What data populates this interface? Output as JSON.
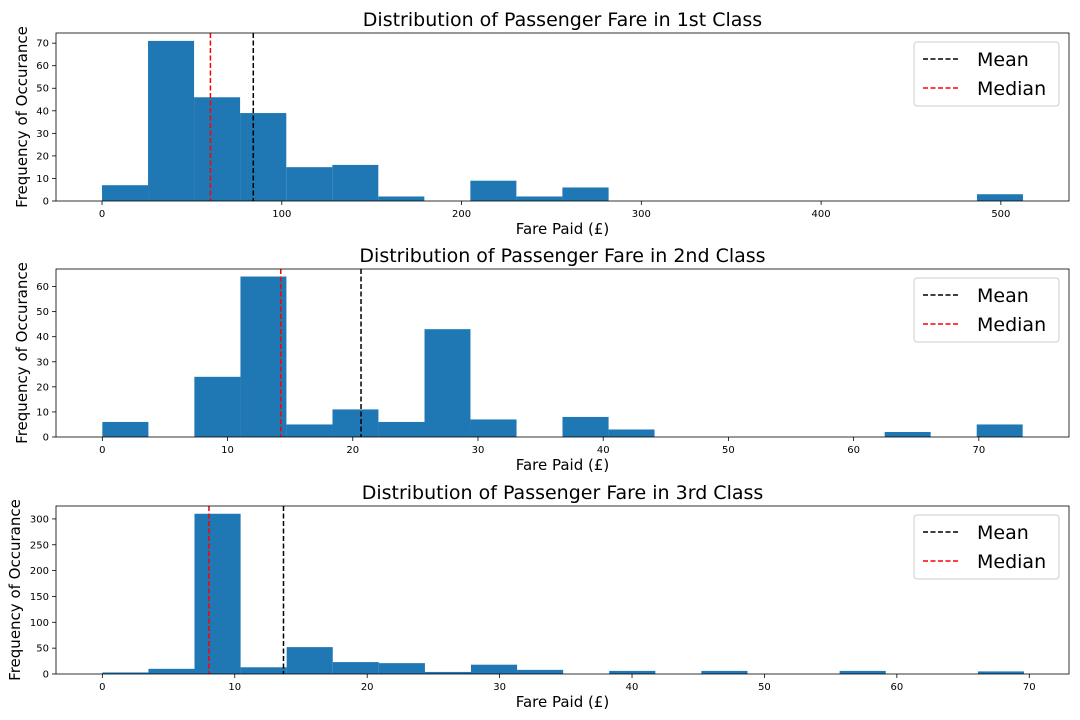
{
  "chart_data": [
    {
      "type": "histogram",
      "title": "Distribution of Passenger Fare in 1st Class",
      "xlabel": "Fare Paid (£)",
      "ylabel": "Frequency of Occurance",
      "xlim": [
        -25.6,
        537.9
      ],
      "ylim": [
        0,
        74.5
      ],
      "xticks": [
        0,
        100,
        200,
        300,
        400,
        500
      ],
      "yticks": [
        0,
        10,
        20,
        30,
        40,
        50,
        60,
        70
      ],
      "bins": [
        {
          "x0": 0,
          "x1": 25.6,
          "count": 7
        },
        {
          "x0": 25.6,
          "x1": 51.2,
          "count": 71
        },
        {
          "x0": 51.2,
          "x1": 76.8,
          "count": 46
        },
        {
          "x0": 76.8,
          "x1": 102.5,
          "count": 39
        },
        {
          "x0": 102.5,
          "x1": 128.1,
          "count": 15
        },
        {
          "x0": 128.1,
          "x1": 153.7,
          "count": 16
        },
        {
          "x0": 153.7,
          "x1": 179.3,
          "count": 2
        },
        {
          "x0": 179.3,
          "x1": 204.9,
          "count": 0
        },
        {
          "x0": 204.9,
          "x1": 230.5,
          "count": 9
        },
        {
          "x0": 230.5,
          "x1": 256.1,
          "count": 2
        },
        {
          "x0": 256.1,
          "x1": 281.8,
          "count": 6
        },
        {
          "x0": 281.8,
          "x1": 486.7,
          "count": 0
        },
        {
          "x0": 486.7,
          "x1": 512.3,
          "count": 3
        }
      ],
      "mean": 84.15,
      "median": 60.29,
      "legend": [
        "Mean",
        "Median"
      ],
      "legend_position": "upper right",
      "colors": {
        "bar": "#1f77b4",
        "mean": "#000000",
        "median": "#ff0000"
      }
    },
    {
      "type": "histogram",
      "title": "Distribution of Passenger Fare in 2nd Class",
      "xlabel": "Fare Paid (£)",
      "ylabel": "Frequency of Occurance",
      "xlim": [
        -3.7,
        77.2
      ],
      "ylim": [
        0,
        67
      ],
      "xticks": [
        0,
        10,
        20,
        30,
        40,
        50,
        60,
        70
      ],
      "yticks": [
        0,
        10,
        20,
        30,
        40,
        50,
        60
      ],
      "bins": [
        {
          "x0": 0,
          "x1": 3.68,
          "count": 6
        },
        {
          "x0": 3.68,
          "x1": 7.35,
          "count": 0
        },
        {
          "x0": 7.35,
          "x1": 11.03,
          "count": 24
        },
        {
          "x0": 11.03,
          "x1": 14.7,
          "count": 64
        },
        {
          "x0": 14.7,
          "x1": 18.38,
          "count": 5
        },
        {
          "x0": 18.38,
          "x1": 22.05,
          "count": 11
        },
        {
          "x0": 22.05,
          "x1": 25.73,
          "count": 6
        },
        {
          "x0": 25.73,
          "x1": 29.4,
          "count": 43
        },
        {
          "x0": 29.4,
          "x1": 33.08,
          "count": 7
        },
        {
          "x0": 33.08,
          "x1": 36.75,
          "count": 0
        },
        {
          "x0": 36.75,
          "x1": 40.43,
          "count": 8
        },
        {
          "x0": 40.43,
          "x1": 44.1,
          "count": 3
        },
        {
          "x0": 44.1,
          "x1": 62.48,
          "count": 0
        },
        {
          "x0": 62.48,
          "x1": 66.15,
          "count": 2
        },
        {
          "x0": 66.15,
          "x1": 69.83,
          "count": 0
        },
        {
          "x0": 69.83,
          "x1": 73.5,
          "count": 5
        }
      ],
      "mean": 20.66,
      "median": 14.25,
      "legend": [
        "Mean",
        "Median"
      ],
      "legend_position": "upper right",
      "colors": {
        "bar": "#1f77b4",
        "mean": "#000000",
        "median": "#ff0000"
      }
    },
    {
      "type": "histogram",
      "title": "Distribution of Passenger Fare in 3rd Class",
      "xlabel": "Fare Paid (£)",
      "ylabel": "Frequency of Occurance",
      "xlim": [
        -3.5,
        73.0
      ],
      "ylim": [
        0,
        325
      ],
      "xticks": [
        0,
        10,
        20,
        30,
        40,
        50,
        60,
        70
      ],
      "yticks": [
        0,
        50,
        100,
        150,
        200,
        250,
        300
      ],
      "bins": [
        {
          "x0": 0,
          "x1": 3.48,
          "count": 3
        },
        {
          "x0": 3.48,
          "x1": 6.96,
          "count": 10
        },
        {
          "x0": 6.96,
          "x1": 10.44,
          "count": 310
        },
        {
          "x0": 10.44,
          "x1": 13.92,
          "count": 13
        },
        {
          "x0": 13.92,
          "x1": 17.4,
          "count": 52
        },
        {
          "x0": 17.4,
          "x1": 20.88,
          "count": 23
        },
        {
          "x0": 20.88,
          "x1": 24.36,
          "count": 21
        },
        {
          "x0": 24.36,
          "x1": 27.84,
          "count": 4
        },
        {
          "x0": 27.84,
          "x1": 31.32,
          "count": 18
        },
        {
          "x0": 31.32,
          "x1": 34.8,
          "count": 8
        },
        {
          "x0": 34.8,
          "x1": 38.28,
          "count": 0
        },
        {
          "x0": 38.28,
          "x1": 41.76,
          "count": 6
        },
        {
          "x0": 41.76,
          "x1": 45.24,
          "count": 0
        },
        {
          "x0": 45.24,
          "x1": 48.72,
          "count": 6
        },
        {
          "x0": 48.72,
          "x1": 55.68,
          "count": 0
        },
        {
          "x0": 55.68,
          "x1": 59.16,
          "count": 6
        },
        {
          "x0": 59.16,
          "x1": 66.12,
          "count": 0
        },
        {
          "x0": 66.12,
          "x1": 69.6,
          "count": 5
        }
      ],
      "mean": 13.68,
      "median": 8.05,
      "legend": [
        "Mean",
        "Median"
      ],
      "legend_position": "upper right",
      "colors": {
        "bar": "#1f77b4",
        "mean": "#000000",
        "median": "#ff0000"
      }
    }
  ]
}
